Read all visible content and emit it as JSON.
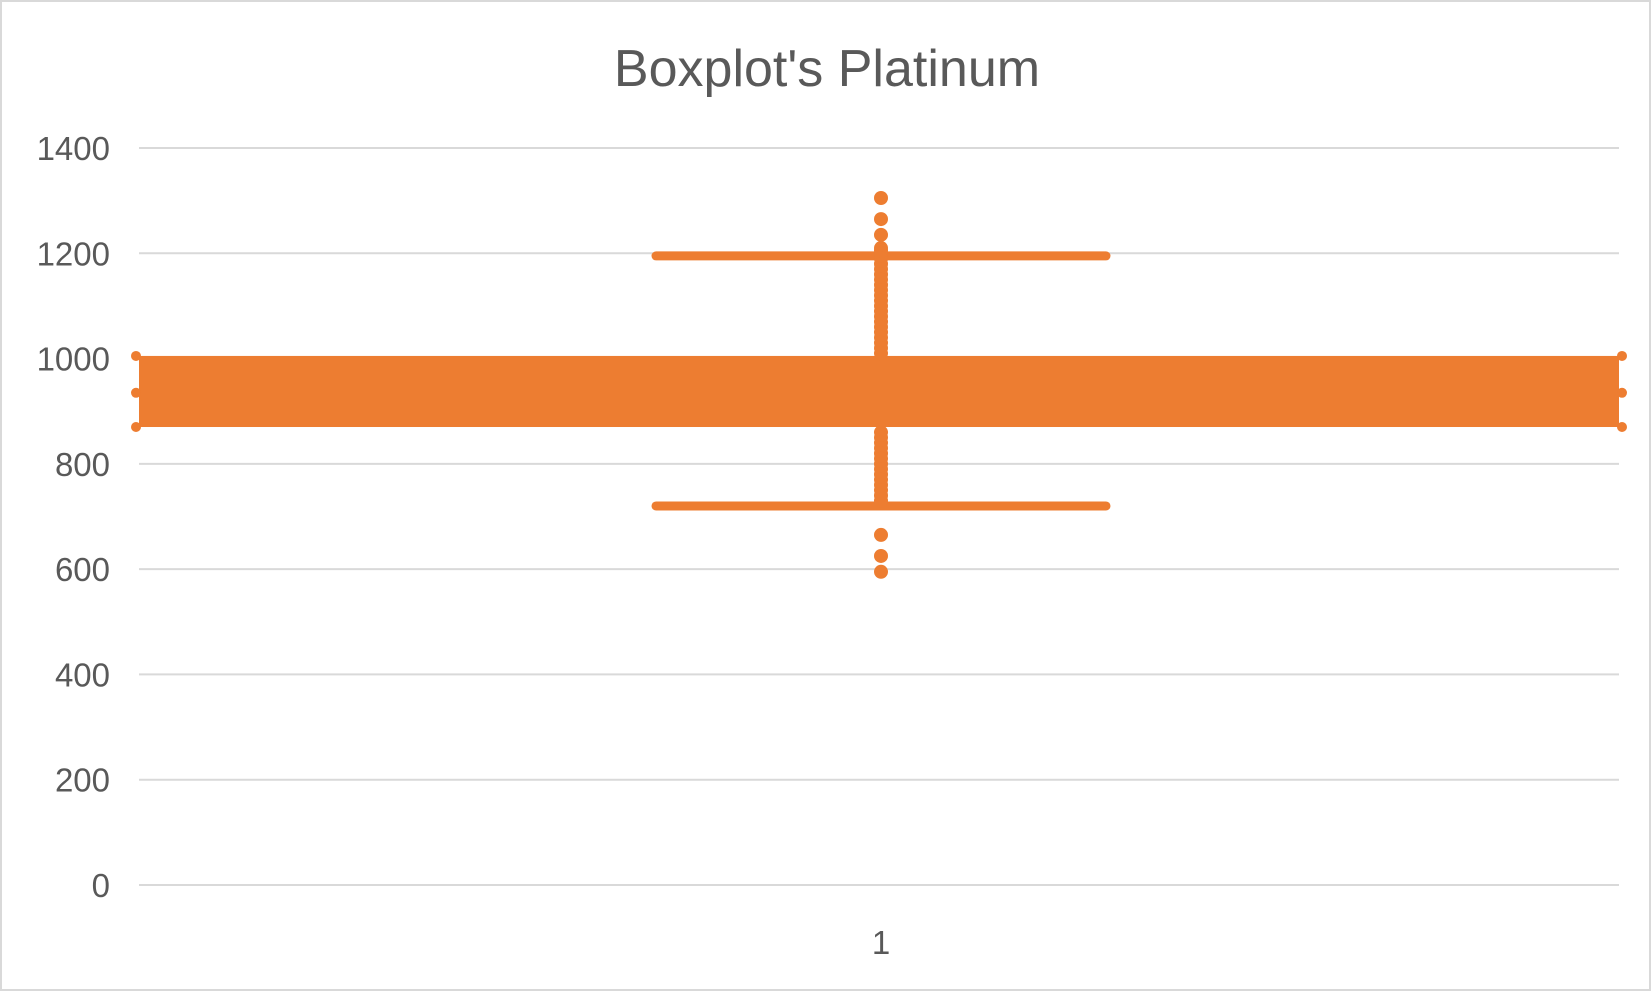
{
  "chart_data": {
    "type": "box",
    "title": "Boxplot's Platinum",
    "xlabel": "",
    "ylabel": "",
    "categories": [
      "1"
    ],
    "ylim": [
      0,
      1400
    ],
    "y_ticks": [
      0,
      200,
      400,
      600,
      800,
      1000,
      1200,
      1400
    ],
    "grid": true,
    "legend": "none",
    "color": "#ED7D31",
    "box": {
      "q1": 870,
      "q3": 1005,
      "whisker_low": 720,
      "whisker_high": 1195
    },
    "box_markers": [
      870,
      935,
      1005
    ],
    "points": [
      1305,
      1265,
      1235,
      1210,
      1205,
      1200,
      1190,
      1180,
      1170,
      1160,
      1150,
      1140,
      1130,
      1120,
      1110,
      1100,
      1090,
      1080,
      1070,
      1060,
      1050,
      1040,
      1030,
      1020,
      1010,
      860,
      850,
      840,
      830,
      820,
      810,
      800,
      790,
      780,
      770,
      760,
      750,
      740,
      730,
      665,
      625,
      595
    ]
  }
}
